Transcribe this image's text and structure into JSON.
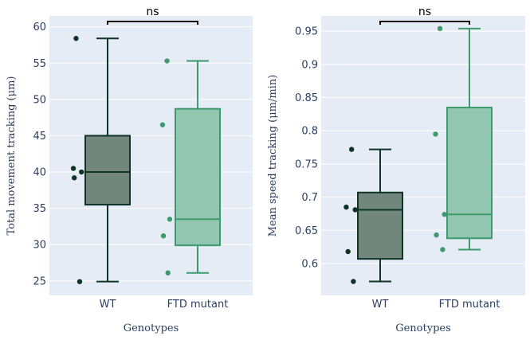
{
  "chart_data": [
    {
      "type": "box",
      "xlabel": "Genotypes",
      "ylabel": "Total movement tracking (μm)",
      "ylim": [
        23,
        61.5
      ],
      "yticks": [
        25,
        30,
        35,
        40,
        45,
        50,
        55,
        60
      ],
      "annotation": "ns",
      "series": [
        {
          "name": "WT",
          "color": "#0f3326",
          "fill": "#72877c",
          "q1": 35.5,
          "median": 40,
          "q3": 45,
          "whisker_low": 24.9,
          "whisker_high": 58.4,
          "points": [
            58.4,
            40.5,
            40.0,
            39.2,
            24.9
          ],
          "jitter": [
            -0.35,
            -0.38,
            -0.29,
            -0.37,
            -0.31
          ]
        },
        {
          "name": "FTD mutant",
          "color": "#3c9a6c",
          "fill": "#92c6b0",
          "q1": 29.9,
          "median": 33.5,
          "q3": 48.7,
          "whisker_low": 26.1,
          "whisker_high": 55.3,
          "points": [
            55.3,
            46.5,
            33.5,
            31.2,
            26.1
          ],
          "jitter": [
            -0.34,
            -0.39,
            -0.31,
            -0.38,
            -0.33
          ]
        }
      ]
    },
    {
      "type": "box",
      "xlabel": "Genotypes",
      "ylabel": "Mean speed tracking (μm/min)",
      "ylim": [
        0.552,
        0.973
      ],
      "yticks": [
        0.6,
        0.65,
        0.7,
        0.75,
        0.8,
        0.85,
        0.9,
        0.95
      ],
      "annotation": "ns",
      "series": [
        {
          "name": "WT",
          "color": "#0f3326",
          "fill": "#72877c",
          "q1": 0.607,
          "median": 0.681,
          "q3": 0.707,
          "whisker_low": 0.573,
          "whisker_high": 0.772,
          "points": [
            0.772,
            0.685,
            0.681,
            0.618,
            0.573
          ],
          "jitter": [
            -0.32,
            -0.38,
            -0.28,
            -0.36,
            -0.3
          ]
        },
        {
          "name": "FTD mutant",
          "color": "#3c9a6c",
          "fill": "#92c6b0",
          "q1": 0.638,
          "median": 0.674,
          "q3": 0.835,
          "whisker_low": 0.621,
          "whisker_high": 0.954,
          "points": [
            0.954,
            0.795,
            0.674,
            0.643,
            0.621
          ],
          "jitter": [
            -0.33,
            -0.38,
            -0.28,
            -0.37,
            -0.3
          ]
        }
      ]
    }
  ]
}
